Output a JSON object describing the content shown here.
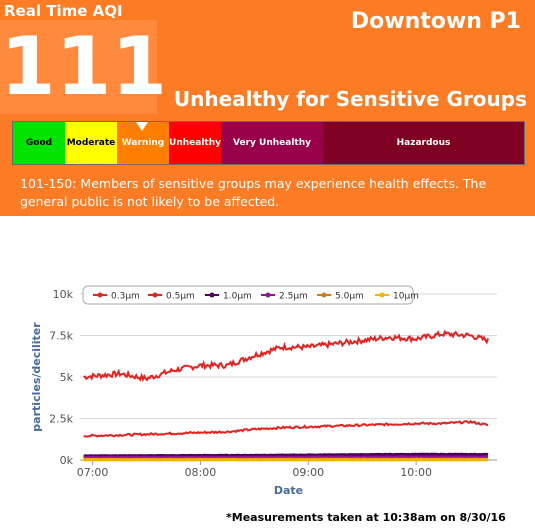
{
  "panel": {
    "realtime_label": "Real Time AQI",
    "aqi_value": "111",
    "station_name": "Downtown P1",
    "category": "Unhealthy for Sensitive Groups",
    "description": "101-150: Members of sensitive groups may experience health effects. The general public is not likely to be affected.",
    "accent_color": "#fb7c24",
    "scale": [
      {
        "label": "Good",
        "color": "#00e400"
      },
      {
        "label": "Moderate",
        "color": "#ffff00"
      },
      {
        "label": "Warning",
        "color": "#ff7e00",
        "text_color": "#ffffff"
      },
      {
        "label": "Unhealthy",
        "color": "#ff0000",
        "text_color": "#ffffff"
      },
      {
        "label": "Very Unhealthy",
        "color": "#99004c",
        "text_color": "#ffffff"
      },
      {
        "label": "Hazardous",
        "color": "#7e0023",
        "text_color": "#ffffff"
      }
    ]
  },
  "footnote": "*Measurements taken at 10:38am on 8/30/16",
  "chart_data": {
    "type": "line",
    "xlabel": "Date",
    "ylabel": "particles/deciliter",
    "x_ticks": [
      "07:00",
      "08:00",
      "09:00",
      "10:00"
    ],
    "y_ticks": [
      "0k",
      "2.5k",
      "5k",
      "7.5k",
      "10k"
    ],
    "ylim": [
      0,
      10000
    ],
    "grid": true,
    "legend_position": "top-left",
    "series": [
      {
        "name": "0.3µm",
        "color": "#e32222",
        "x": [
          "06:55",
          "07:15",
          "07:30",
          "07:45",
          "08:00",
          "08:15",
          "08:30",
          "08:45",
          "09:00",
          "09:15",
          "09:30",
          "09:45",
          "10:00",
          "10:15",
          "10:30",
          "10:40"
        ],
        "y": [
          5000,
          5200,
          4900,
          5400,
          5700,
          5700,
          6300,
          6800,
          6800,
          7000,
          7200,
          7400,
          7300,
          7600,
          7500,
          7200
        ]
      },
      {
        "name": "0.5µm",
        "color": "#e32222",
        "x": [
          "06:55",
          "07:15",
          "07:30",
          "07:45",
          "08:00",
          "08:15",
          "08:30",
          "08:45",
          "09:00",
          "09:15",
          "09:30",
          "09:45",
          "10:00",
          "10:15",
          "10:30",
          "10:40"
        ],
        "y": [
          1450,
          1500,
          1550,
          1600,
          1650,
          1700,
          1850,
          1950,
          2000,
          2050,
          2100,
          2150,
          2200,
          2200,
          2300,
          2100
        ]
      },
      {
        "name": "1.0µm",
        "color": "#4b0056",
        "x": [
          "06:55",
          "07:30",
          "08:00",
          "08:30",
          "09:00",
          "09:30",
          "10:00",
          "10:40"
        ],
        "y": [
          250,
          260,
          270,
          280,
          300,
          320,
          340,
          330
        ]
      },
      {
        "name": "2.5µm",
        "color": "#92129c",
        "x": [
          "06:55",
          "07:30",
          "08:00",
          "08:30",
          "09:00",
          "09:30",
          "10:00",
          "10:40"
        ],
        "y": [
          150,
          160,
          160,
          170,
          170,
          180,
          180,
          180
        ]
      },
      {
        "name": "5.0µm",
        "color": "#d27b0f",
        "x": [
          "06:55",
          "07:30",
          "08:00",
          "08:30",
          "09:00",
          "09:30",
          "10:00",
          "10:40"
        ],
        "y": [
          40,
          40,
          45,
          45,
          50,
          50,
          50,
          50
        ]
      },
      {
        "name": "10µm",
        "color": "#f0b400",
        "x": [
          "06:55",
          "07:30",
          "08:00",
          "08:30",
          "09:00",
          "09:30",
          "10:00",
          "10:40"
        ],
        "y": [
          10,
          10,
          10,
          12,
          12,
          12,
          12,
          12
        ]
      }
    ]
  }
}
